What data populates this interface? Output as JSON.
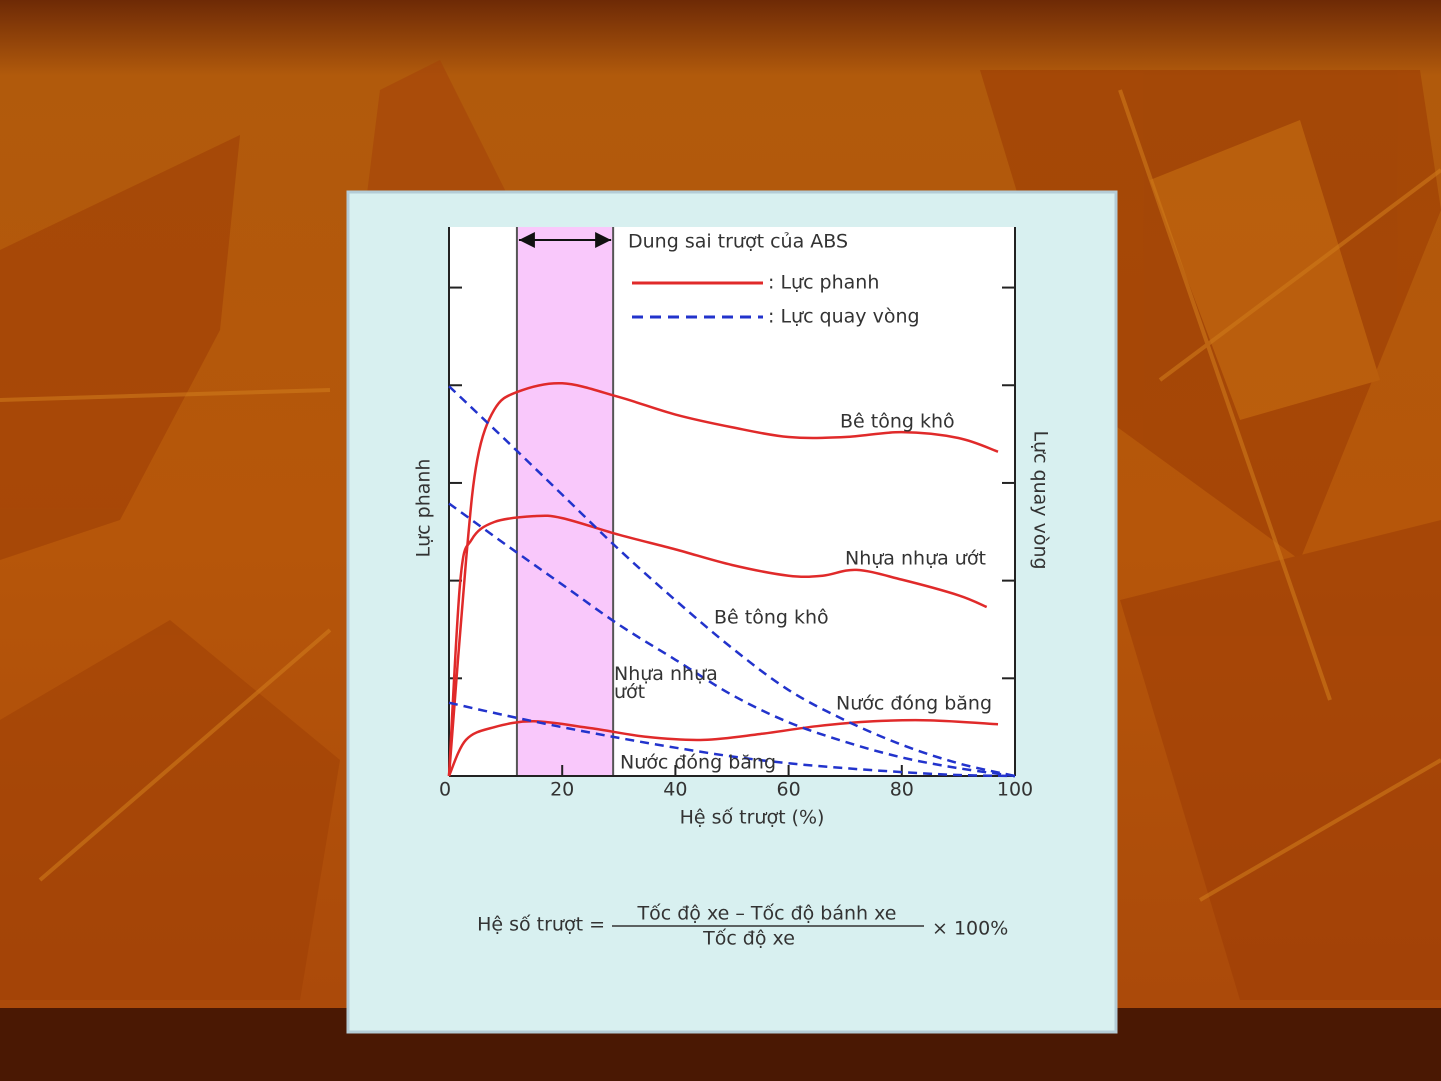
{
  "chart_data": {
    "type": "line",
    "abs_label": "Dung sai trượt của ABS",
    "abs_range": [
      12,
      29
    ],
    "xlabel": "Hệ số trượt (%)",
    "ylabel": "Lực phanh",
    "y2label": "Lực quay vòng",
    "xlim": [
      0,
      100
    ],
    "xticks": [
      0,
      20,
      40,
      60,
      80,
      100
    ],
    "ylim": [
      0,
      5.62
    ],
    "yticks": [
      1,
      2,
      3,
      4,
      5
    ],
    "legend": [
      {
        "label": ": Lực phanh",
        "color": "#e02a2a",
        "dashed": false
      },
      {
        "label": ": Lực quay vòng",
        "color": "#2233cc",
        "dashed": true
      }
    ],
    "series": [
      {
        "name": "Bê tông khô",
        "color": "#e02a2a",
        "dashed": false,
        "x": [
          0,
          3,
          5,
          8,
          12,
          20,
          30,
          40,
          50,
          60,
          70,
          80,
          90,
          97
        ],
        "values": [
          0,
          2.2,
          3.24,
          3.75,
          3.93,
          4.02,
          3.88,
          3.7,
          3.57,
          3.47,
          3.47,
          3.52,
          3.46,
          3.32
        ]
      },
      {
        "name": "Nhựa nhựa ướt",
        "color": "#e02a2a",
        "dashed": false,
        "x": [
          0,
          2,
          4,
          8,
          15,
          20,
          30,
          40,
          50,
          60,
          66,
          72,
          80,
          90,
          95
        ],
        "values": [
          0,
          2.0,
          2.42,
          2.6,
          2.66,
          2.64,
          2.47,
          2.32,
          2.16,
          2.05,
          2.05,
          2.11,
          2.01,
          1.85,
          1.73
        ]
      },
      {
        "name": "Nước đóng băng",
        "color": "#e02a2a",
        "dashed": false,
        "x": [
          0,
          3,
          8,
          15,
          25,
          35,
          45,
          55,
          65,
          75,
          85,
          97
        ],
        "values": [
          0,
          0.37,
          0.5,
          0.56,
          0.49,
          0.4,
          0.37,
          0.43,
          0.51,
          0.56,
          0.57,
          0.53
        ]
      },
      {
        "name": "Bê tông khô",
        "color": "#2233cc",
        "dashed": true,
        "x": [
          0,
          10,
          20,
          30,
          40,
          50,
          60,
          70,
          80,
          90,
          100
        ],
        "values": [
          3.99,
          3.44,
          2.88,
          2.32,
          1.8,
          1.31,
          0.88,
          0.57,
          0.32,
          0.13,
          0
        ]
      },
      {
        "name": "Nhựa nhựa ướt",
        "color": "#2233cc",
        "dashed": true,
        "x": [
          0,
          10,
          20,
          30,
          40,
          50,
          60,
          70,
          80,
          90,
          100
        ],
        "values": [
          2.79,
          2.37,
          1.96,
          1.55,
          1.19,
          0.83,
          0.55,
          0.35,
          0.19,
          0.08,
          0
        ]
      },
      {
        "name": "Nước đóng băng",
        "color": "#2233cc",
        "dashed": true,
        "x": [
          0,
          10,
          20,
          30,
          40,
          50,
          60,
          70,
          80,
          90,
          100
        ],
        "values": [
          0.75,
          0.62,
          0.5,
          0.39,
          0.29,
          0.2,
          0.13,
          0.08,
          0.04,
          0.01,
          0
        ]
      }
    ],
    "formula": {
      "lhs": "Hệ số trượt =",
      "numerator": "Tốc độ xe – Tốc độ bánh xe",
      "denominator": "Tốc độ xe",
      "factor": "× 100%"
    }
  }
}
